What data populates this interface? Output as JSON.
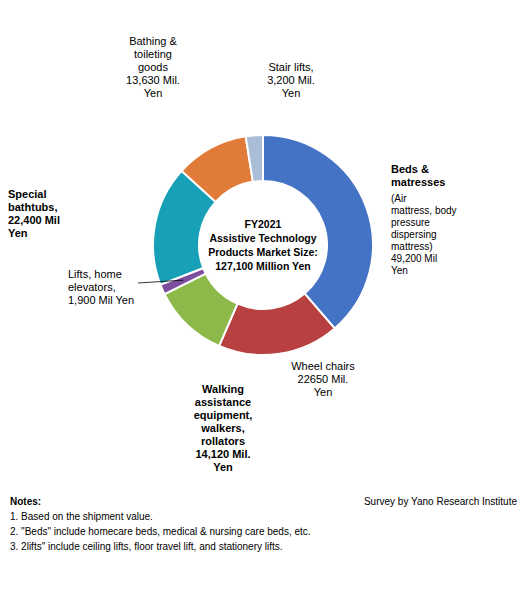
{
  "chart_data": {
    "type": "donut",
    "title": "FY2021\nAssistive Technology\nProducts Market Size:\n127,100 Million Yen",
    "categories": [
      "Beds &\nmatresses",
      "Wheel chairs",
      "Walking\nassistance\nequipment,\nwalkers,\nrollators",
      "Lifts, home\nelevators,",
      "Special\nbathtubs,",
      "Bathing &\ntoileting\ngoods",
      "Stair lifts,"
    ],
    "values": [
      49200,
      22650,
      14120,
      1900,
      22400,
      13630,
      3200
    ],
    "value_labels": [
      "(Air\nmattress, body\npressure\ndispersing\nmattress)\n49,200 Mil\nYen",
      "22650 Mil.\nYen",
      "14,120 Mil.\nYen",
      "1,900 Mil Yen",
      "22,400 Mil\nYen",
      "13,630 Mil.\nYen",
      "3,200 Mil.\nYen"
    ],
    "colors": [
      "#4472C4",
      "#B94040",
      "#8DB84A",
      "#7B4F9E",
      "#17A0B8",
      "#E07B39",
      "#A9BDD8"
    ],
    "data_labels": true,
    "annotations": [
      "Notes:",
      "1. Based on the shipment value.",
      "2. \"Beds\" include homecare beds, medical & nursing care beds, etc.",
      "3. 2lifts\" include ceiling lifts, floor travel lift, and stationery lifts.",
      "Survey by Yano Research Institute"
    ]
  }
}
